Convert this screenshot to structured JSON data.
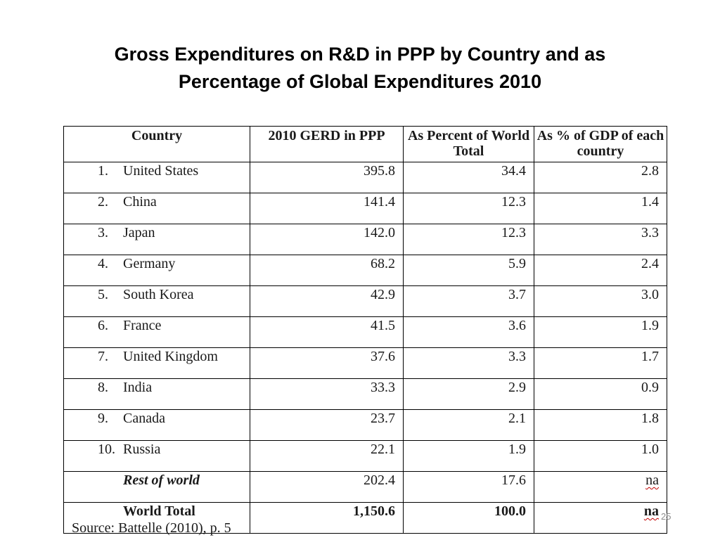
{
  "slide": {
    "title_line1": "Gross Expenditures on R&D in PPP by Country and as",
    "title_line2": "Percentage of Global Expenditures 2010",
    "page_number": "25",
    "source": "Source: Battelle (2010), p. 5"
  },
  "table": {
    "headers": [
      "Country",
      "2010 GERD in PPP",
      "As Percent of World Total",
      "As % of GDP of each country"
    ],
    "rows": [
      {
        "rank": "1.",
        "country": "United States",
        "gerd": "395.8",
        "pct_world": "34.4",
        "pct_gdp": "2.8"
      },
      {
        "rank": "2.",
        "country": "China",
        "gerd": "141.4",
        "pct_world": "12.3",
        "pct_gdp": "1.4"
      },
      {
        "rank": "3.",
        "country": "Japan",
        "gerd": "142.0",
        "pct_world": "12.3",
        "pct_gdp": "3.3"
      },
      {
        "rank": "4.",
        "country": "Germany",
        "gerd": "68.2",
        "pct_world": "5.9",
        "pct_gdp": "2.4"
      },
      {
        "rank": "5.",
        "country": "South Korea",
        "gerd": "42.9",
        "pct_world": "3.7",
        "pct_gdp": "3.0"
      },
      {
        "rank": "6.",
        "country": "France",
        "gerd": "41.5",
        "pct_world": "3.6",
        "pct_gdp": "1.9"
      },
      {
        "rank": "7.",
        "country": "United Kingdom",
        "gerd": "37.6",
        "pct_world": "3.3",
        "pct_gdp": "1.7"
      },
      {
        "rank": "8.",
        "country": "India",
        "gerd": "33.3",
        "pct_world": "2.9",
        "pct_gdp": "0.9"
      },
      {
        "rank": "9.",
        "country": "Canada",
        "gerd": "23.7",
        "pct_world": "2.1",
        "pct_gdp": "1.8"
      },
      {
        "rank": "10.",
        "country": "Russia",
        "gerd": "22.1",
        "pct_world": "1.9",
        "pct_gdp": "1.0"
      }
    ],
    "rest_of_world": {
      "country": "Rest of world",
      "gerd": "202.4",
      "pct_world": "17.6",
      "pct_gdp": "na"
    },
    "world_total": {
      "country": "World Total",
      "gerd": "1,150.6",
      "pct_world": "100.0",
      "pct_gdp": "na"
    }
  }
}
